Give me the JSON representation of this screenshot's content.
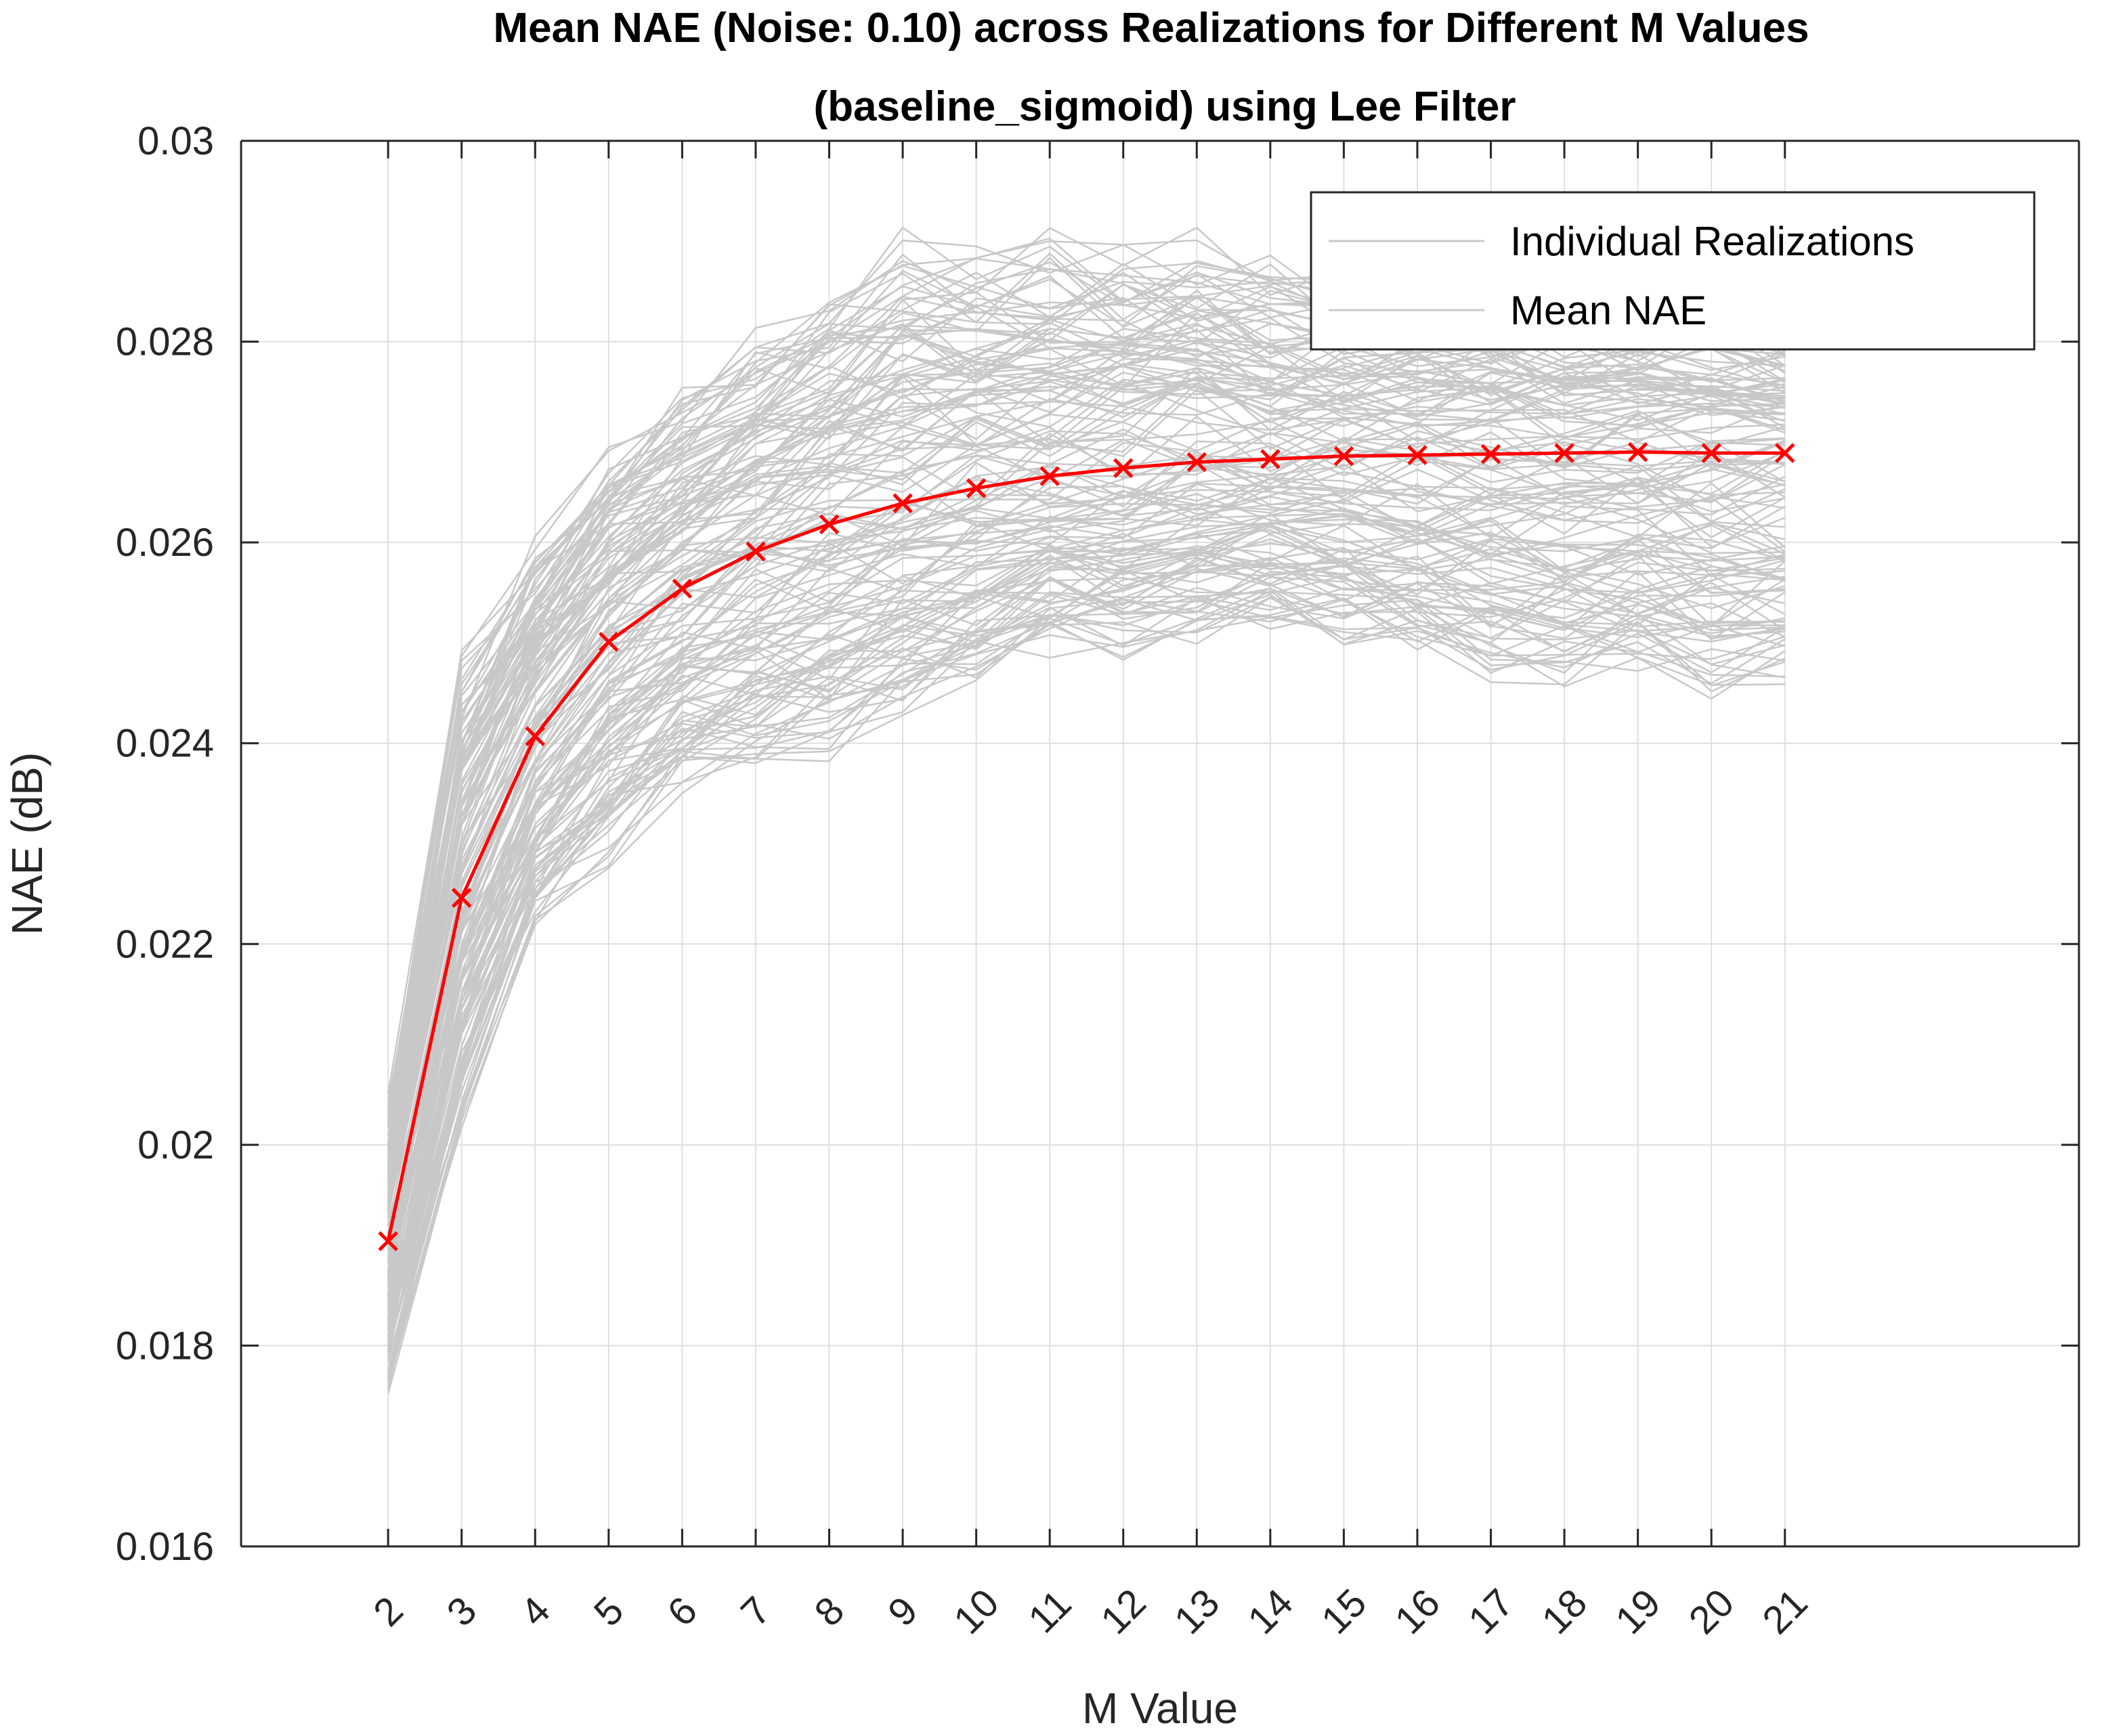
{
  "chart_data": {
    "type": "line",
    "title": [
      "Mean NAE (Noise: 0.10) across Realizations for Different M Values",
      "(baseline_sigmoid) using Lee Filter"
    ],
    "xlabel": "M Value",
    "ylabel": "NAE (dB)",
    "xlim": [
      0,
      25
    ],
    "ylim": [
      0.016,
      0.03
    ],
    "x_ticks": [
      2,
      3,
      4,
      5,
      6,
      7,
      8,
      9,
      10,
      11,
      12,
      13,
      14,
      15,
      16,
      17,
      18,
      19,
      20,
      21
    ],
    "y_ticks": [
      0.016,
      0.018,
      0.02,
      0.022,
      0.024,
      0.026,
      0.028,
      0.03
    ],
    "y_tick_labels": [
      "0.016",
      "0.018",
      "0.02",
      "0.022",
      "0.024",
      "0.026",
      "0.028",
      "0.03"
    ],
    "grid": true,
    "legend_position": "top-right",
    "legend": [
      "Individual Realizations",
      "Mean NAE"
    ],
    "series": [
      {
        "name": "Mean NAE",
        "color": "#ff0000",
        "marker": "x",
        "x": [
          2,
          3,
          4,
          5,
          6,
          7,
          8,
          9,
          10,
          11,
          12,
          13,
          14,
          15,
          16,
          17,
          18,
          19,
          20,
          21
        ],
        "values": [
          0.01904,
          0.02246,
          0.02407,
          0.02501,
          0.02554,
          0.02591,
          0.02618,
          0.02639,
          0.02654,
          0.02666,
          0.02674,
          0.0268,
          0.02683,
          0.02686,
          0.02687,
          0.02688,
          0.02689,
          0.0269,
          0.02689,
          0.02689
        ]
      }
    ],
    "realizations": {
      "name": "Individual Realizations",
      "color": "#c8c8c8",
      "x": [
        2,
        3,
        4,
        5,
        6,
        7,
        8,
        9,
        10,
        11,
        12,
        13,
        14,
        15,
        16,
        17,
        18,
        19,
        20,
        21
      ],
      "upper_envelope": [
        0.0206,
        0.0251,
        0.0262,
        0.0271,
        0.0277,
        0.0282,
        0.0287,
        0.0292,
        0.0291,
        0.0292,
        0.0291,
        0.0292,
        0.029,
        0.0289,
        0.0288,
        0.0288,
        0.0287,
        0.0287,
        0.0287,
        0.0286
      ],
      "lower_envelope": [
        0.0175,
        0.0201,
        0.022,
        0.0227,
        0.0234,
        0.0236,
        0.0237,
        0.0241,
        0.0245,
        0.0248,
        0.0248,
        0.0249,
        0.025,
        0.0248,
        0.0247,
        0.0245,
        0.0245,
        0.0245,
        0.0244,
        0.0244
      ]
    }
  }
}
